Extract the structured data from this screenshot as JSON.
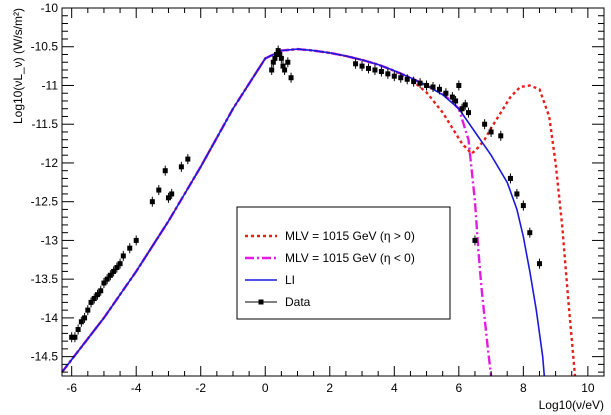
{
  "chart_data": {
    "type": "line",
    "xlabel": "Log10(ν/eV)",
    "ylabel": "Log10(νL_ν) (W/s/m²)",
    "xlim": [
      -6.3,
      10.5
    ],
    "ylim": [
      -14.75,
      -10.0
    ],
    "x_ticks": [
      -6,
      -4,
      -2,
      0,
      2,
      4,
      6,
      8,
      10
    ],
    "y_ticks": [
      -14.5,
      -14,
      -13.5,
      -13,
      -12.5,
      -12,
      -11.5,
      -11,
      -10.5,
      -10
    ],
    "legend_position": "center",
    "series": [
      {
        "name": "M_LV = 10^15 GeV (η > 0)",
        "color": "#e8201c",
        "style": "dotted",
        "x": [
          -6.3,
          -5,
          -4,
          -3,
          -2,
          -1,
          0,
          0.5,
          1,
          1.5,
          2,
          2.5,
          3,
          3.5,
          4,
          4.5,
          5,
          5.5,
          5.8,
          6.1,
          6.4,
          6.6,
          6.8,
          7.0,
          7.3,
          7.6,
          7.9,
          8.2,
          8.5,
          8.8,
          9.0,
          9.2,
          9.4,
          9.6
        ],
        "y": [
          -14.7,
          -14.0,
          -13.4,
          -12.75,
          -12.05,
          -11.3,
          -10.65,
          -10.55,
          -10.53,
          -10.55,
          -10.58,
          -10.62,
          -10.67,
          -10.73,
          -10.81,
          -10.92,
          -11.09,
          -11.35,
          -11.55,
          -11.75,
          -11.88,
          -11.8,
          -11.7,
          -11.55,
          -11.35,
          -11.15,
          -11.02,
          -11.0,
          -11.05,
          -11.4,
          -12.0,
          -12.8,
          -13.8,
          -14.75
        ]
      },
      {
        "name": "M_LV = 10^15 GeV (η < 0)",
        "color": "#e11de1",
        "style": "dashdot",
        "x": [
          -6.3,
          -5,
          -4,
          -3,
          -2,
          -1,
          0,
          0.5,
          1,
          1.5,
          2,
          2.5,
          3,
          3.5,
          4,
          4.5,
          5,
          5.5,
          6.0,
          6.3,
          6.5,
          6.6,
          6.7,
          6.8,
          6.9,
          7.0
        ],
        "y": [
          -14.7,
          -14.0,
          -13.4,
          -12.75,
          -12.05,
          -11.3,
          -10.65,
          -10.55,
          -10.53,
          -10.55,
          -10.58,
          -10.62,
          -10.67,
          -10.73,
          -10.81,
          -10.9,
          -11.0,
          -11.1,
          -11.3,
          -11.7,
          -12.5,
          -13.1,
          -13.6,
          -14.0,
          -14.4,
          -14.75
        ]
      },
      {
        "name": "LI",
        "color": "#1a1adc",
        "style": "solid",
        "x": [
          -6.3,
          -5,
          -4,
          -3,
          -2,
          -1,
          0,
          0.5,
          1,
          1.5,
          2,
          2.5,
          3,
          3.5,
          4,
          4.5,
          5,
          5.5,
          6.0,
          6.5,
          7.0,
          7.5,
          7.8,
          8.0,
          8.2,
          8.4,
          8.5,
          8.6,
          8.65
        ],
        "y": [
          -14.7,
          -14.0,
          -13.4,
          -12.75,
          -12.05,
          -11.3,
          -10.65,
          -10.55,
          -10.53,
          -10.55,
          -10.58,
          -10.62,
          -10.67,
          -10.73,
          -10.81,
          -10.9,
          -11.0,
          -11.12,
          -11.3,
          -11.6,
          -11.9,
          -12.25,
          -12.6,
          -12.95,
          -13.4,
          -13.9,
          -14.2,
          -14.5,
          -14.75
        ]
      },
      {
        "name": "Data",
        "color": "#000000",
        "style": "markers",
        "x": [
          -6.0,
          -5.9,
          -5.8,
          -5.7,
          -5.6,
          -5.5,
          -5.4,
          -5.3,
          -5.2,
          -5.1,
          -5.0,
          -4.9,
          -4.8,
          -4.7,
          -4.6,
          -4.5,
          -4.4,
          -4.2,
          -4.0,
          -3.5,
          -3.3,
          -3.1,
          -3.0,
          -2.9,
          -2.6,
          -2.4,
          0.2,
          0.25,
          0.3,
          0.35,
          0.4,
          0.45,
          0.5,
          0.55,
          0.6,
          0.7,
          0.8,
          2.8,
          3.0,
          3.2,
          3.4,
          3.6,
          3.8,
          4.0,
          4.2,
          4.4,
          4.6,
          4.8,
          5.0,
          5.2,
          5.4,
          5.6,
          5.8,
          5.9,
          6.0,
          6.1,
          6.2,
          6.3,
          6.5,
          6.8,
          7.0,
          7.3,
          7.6,
          7.8,
          8.0,
          8.2,
          8.5
        ],
        "y": [
          -14.25,
          -14.25,
          -14.15,
          -14.05,
          -14.0,
          -13.9,
          -13.8,
          -13.75,
          -13.7,
          -13.65,
          -13.55,
          -13.5,
          -13.45,
          -13.4,
          -13.35,
          -13.3,
          -13.2,
          -13.1,
          -13.0,
          -12.5,
          -12.35,
          -12.1,
          -12.45,
          -12.4,
          -12.05,
          -11.95,
          -10.8,
          -10.7,
          -10.65,
          -10.6,
          -10.55,
          -10.6,
          -10.65,
          -10.75,
          -10.8,
          -10.7,
          -10.9,
          -10.72,
          -10.75,
          -10.78,
          -10.8,
          -10.82,
          -10.85,
          -10.88,
          -10.9,
          -10.92,
          -10.95,
          -10.97,
          -11.0,
          -11.02,
          -11.05,
          -11.1,
          -11.15,
          -11.2,
          -11.0,
          -11.3,
          -11.25,
          -11.35,
          -13.0,
          -11.5,
          -11.6,
          -11.65,
          -12.2,
          -12.4,
          -12.55,
          -12.9,
          -13.3
        ]
      }
    ]
  }
}
